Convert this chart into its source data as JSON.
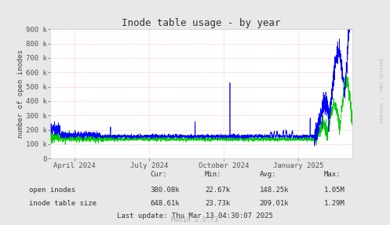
{
  "title": "Inode table usage - by year",
  "ylabel": "number of open inodes",
  "bg_color": "#E8E8E8",
  "plot_bg_color": "#FFFFFF",
  "grid_color": "#FF9999",
  "ylim": [
    0,
    900000
  ],
  "yticks": [
    0,
    100000,
    200000,
    300000,
    400000,
    500000,
    600000,
    700000,
    800000,
    900000
  ],
  "ytick_labels": [
    "0",
    "100 k",
    "200 k",
    "300 k",
    "400 k",
    "500 k",
    "600 k",
    "700 k",
    "800 k",
    "900 k"
  ],
  "xtick_labels": [
    "April 2024",
    "July 2024",
    "October 2024",
    "January 2025"
  ],
  "xtick_positions": [
    0.082,
    0.328,
    0.575,
    0.822
  ],
  "open_inodes_color": "#00CC00",
  "inode_table_color": "#0000FF",
  "stats_header": [
    "Cur:",
    "Min:",
    "Avg:",
    "Max:"
  ],
  "stats_open_inodes": [
    "380.08k",
    "22.67k",
    "148.25k",
    "1.05M"
  ],
  "stats_inode_table": [
    "648.61k",
    "23.73k",
    "209.01k",
    "1.29M"
  ],
  "last_update": "Last update: Thu Mar 13 04:30:07 2025",
  "munin_version": "Munin 2.0.73",
  "watermark": "RRDTOOL / TOBI OETIKER",
  "title_fontsize": 9,
  "label_fontsize": 6.5,
  "tick_fontsize": 6.5,
  "stats_fontsize": 6.5
}
